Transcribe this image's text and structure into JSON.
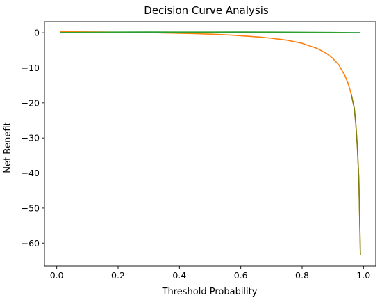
{
  "chart_data": {
    "type": "line",
    "title": "Decision Curve Analysis",
    "xlabel": "Threshold Probability",
    "ylabel": "Net Benefit",
    "xlim": [
      -0.04,
      1.04
    ],
    "ylim": [
      -66.5,
      3.2
    ],
    "xticks": [
      0.0,
      0.2,
      0.4,
      0.6,
      0.8,
      1.0
    ],
    "xtick_labels": [
      "0.0",
      "0.2",
      "0.4",
      "0.6",
      "0.8",
      "1.0"
    ],
    "yticks": [
      0,
      -10,
      -20,
      -30,
      -40,
      -50,
      -60
    ],
    "ytick_labels": [
      "0",
      "−10",
      "−20",
      "−30",
      "−40",
      "−50",
      "−60"
    ],
    "grid": false,
    "series": [
      {
        "color": "#ff7f0e",
        "x": [
          0.01,
          0.05,
          0.1,
          0.15,
          0.2,
          0.25,
          0.3,
          0.35,
          0.4,
          0.45,
          0.5,
          0.55,
          0.6,
          0.65,
          0.7,
          0.75,
          0.8,
          0.85,
          0.88,
          0.9,
          0.92,
          0.94,
          0.95,
          0.96,
          0.97,
          0.975,
          0.98,
          0.985,
          0.99
        ],
        "y": [
          0.3,
          0.27,
          0.24,
          0.2,
          0.16,
          0.1,
          0.04,
          -0.05,
          -0.15,
          -0.27,
          -0.42,
          -0.6,
          -0.85,
          -1.15,
          -1.55,
          -2.1,
          -3.0,
          -4.5,
          -5.9,
          -7.3,
          -9.2,
          -12.3,
          -14.5,
          -17.5,
          -21.5,
          -26.0,
          -32.5,
          -42.0,
          -63.5
        ]
      },
      {
        "color": "#7f7f0e",
        "x": [
          0.96,
          0.97,
          0.975,
          0.98,
          0.985,
          0.99
        ],
        "y": [
          -17.5,
          -21.5,
          -26.0,
          -32.5,
          -42.0,
          -63.5
        ]
      },
      {
        "color": "#1f77b4",
        "x": [
          0.01,
          0.99
        ],
        "y": [
          0.0,
          0.0
        ]
      },
      {
        "color": "#2ca02c",
        "x": [
          0.01,
          0.1,
          0.2,
          0.3,
          0.4,
          0.5,
          0.6,
          0.7,
          0.8,
          0.9,
          0.99
        ],
        "y": [
          0.05,
          0.12,
          0.18,
          0.2,
          0.19,
          0.18,
          0.2,
          0.19,
          0.15,
          0.08,
          0.0
        ]
      }
    ]
  }
}
